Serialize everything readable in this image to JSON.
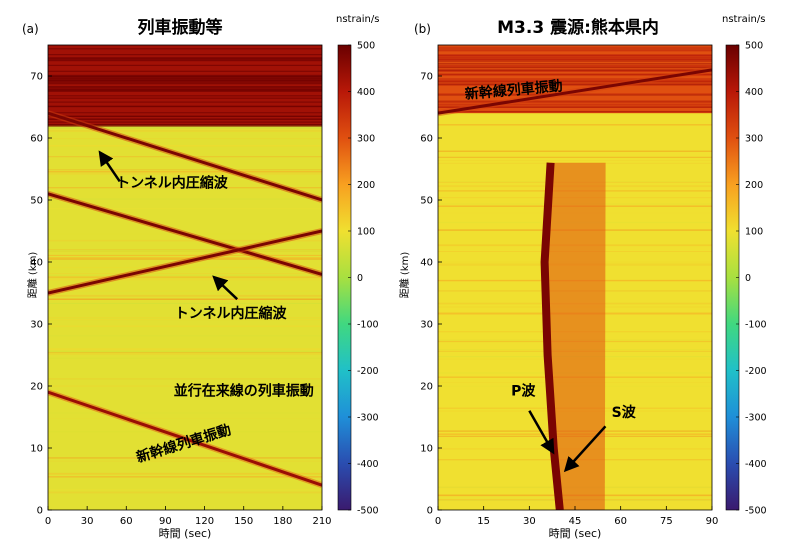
{
  "colors": {
    "accent_dark": "#7a0000",
    "background_green": "#b8e030",
    "arrow": "#000000"
  },
  "colorbar_colors": [
    "#3a1a6e",
    "#2a4db0",
    "#1f8fd8",
    "#20c0c8",
    "#40d880",
    "#a8e040",
    "#f0e030",
    "#f8a020",
    "#e05010",
    "#b81808",
    "#6a0000"
  ],
  "chart_data": [
    {
      "type": "heatmap",
      "panel_label": "(a)",
      "title": "列車振動等",
      "xlabel": "時間 (sec)",
      "ylabel": "距離 (km)",
      "xlim": [
        0,
        210
      ],
      "ylim": [
        0,
        75
      ],
      "xticks": [
        "0",
        "30",
        "60",
        "90",
        "120",
        "150",
        "180",
        "210"
      ],
      "yticks": [
        "0",
        "10",
        "20",
        "30",
        "40",
        "50",
        "60",
        "70"
      ],
      "colorbar": {
        "unit": "nstrain/s",
        "range": [
          -500,
          500
        ],
        "ticks": [
          "500",
          "400",
          "300",
          "200",
          "100",
          "0",
          "-100",
          "-200",
          "-300",
          "-400",
          "-500"
        ]
      },
      "background_level": 80,
      "features": [
        {
          "kind": "noisy_band",
          "y_from": 62,
          "y_to": 75,
          "level": 430
        },
        {
          "kind": "wave_line",
          "points": [
            [
              0,
              64
            ],
            [
              210,
              50
            ]
          ],
          "level": 480
        },
        {
          "kind": "wave_line",
          "points": [
            [
              0,
              51
            ],
            [
              210,
              38
            ]
          ],
          "level": 480
        },
        {
          "kind": "wave_line",
          "points": [
            [
              0,
              35
            ],
            [
              210,
              45
            ]
          ],
          "level": 480
        },
        {
          "kind": "wave_line",
          "points": [
            [
              0,
              19
            ],
            [
              210,
              4
            ]
          ],
          "level": 440
        }
      ],
      "annotations": [
        {
          "text": "トンネル内圧縮波",
          "at": [
            95,
            52
          ],
          "arrow_from": [
            55,
            53
          ],
          "arrow_to": [
            42,
            57
          ]
        },
        {
          "text": "トンネル内圧縮波",
          "at": [
            140,
            31
          ],
          "arrow_from": [
            145,
            34
          ],
          "arrow_to": [
            130,
            37
          ]
        },
        {
          "text": "並行在来線の列車振動",
          "at": [
            150,
            18.5
          ]
        },
        {
          "text": "新幹線列車振動",
          "at": [
            105,
            10
          ],
          "rotate": -17
        }
      ]
    },
    {
      "type": "heatmap",
      "panel_label": "(b)",
      "title": "M3.3 震源:熊本県内",
      "xlabel": "時間 (sec)",
      "ylabel": "距離 (km)",
      "xlim": [
        0,
        90
      ],
      "ylim": [
        0,
        75
      ],
      "xticks": [
        "0",
        "15",
        "30",
        "45",
        "60",
        "75",
        "90"
      ],
      "yticks": [
        "0",
        "10",
        "20",
        "30",
        "40",
        "50",
        "60",
        "70"
      ],
      "colorbar": {
        "unit": "nstrain/s",
        "range": [
          -500,
          500
        ],
        "ticks": [
          "500",
          "400",
          "300",
          "200",
          "100",
          "0",
          "-100",
          "-200",
          "-300",
          "-400",
          "-500"
        ]
      },
      "background_level": 100,
      "features": [
        {
          "kind": "noisy_band",
          "y_from": 64,
          "y_to": 75,
          "level": 300
        },
        {
          "kind": "wave_line",
          "points": [
            [
              0,
              64
            ],
            [
              90,
              71
            ]
          ],
          "level": 480
        },
        {
          "kind": "seismic_front",
          "points": [
            [
              37,
              56
            ],
            [
              35,
              40
            ],
            [
              36,
              25
            ],
            [
              38,
              10
            ],
            [
              40,
              0
            ]
          ],
          "level": 480
        }
      ],
      "annotations": [
        {
          "text": "新幹線列車振動",
          "at": [
            25,
            67
          ],
          "rotate": -5
        },
        {
          "text": "P波",
          "at": [
            28,
            18.5
          ],
          "arrow_from": [
            30,
            16
          ],
          "arrow_to": [
            37,
            10
          ]
        },
        {
          "text": "S波",
          "at": [
            61,
            15
          ],
          "arrow_from": [
            55,
            13.5
          ],
          "arrow_to": [
            43,
            7
          ]
        }
      ]
    }
  ]
}
